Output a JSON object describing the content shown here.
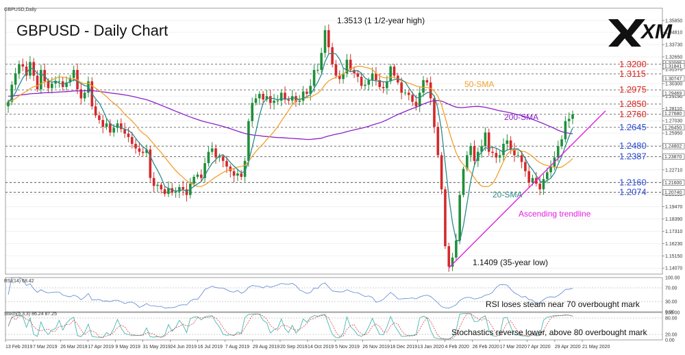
{
  "chart_data": {
    "type": "line",
    "symbol_header": "GBPUSD,Daily",
    "title": "GBPUSD - Daily Chart",
    "brand": "XM",
    "colors": {
      "bull": "#1f8f3a",
      "bear": "#d3292a",
      "sma20": "#2b8a8a",
      "sma50": "#f3a02b",
      "sma200": "#8a22c8",
      "trendline": "#e21fe0",
      "level_red": "#e0241d",
      "level_blue": "#2c4bd6",
      "rsi": "#6b8fd6",
      "stoch_main": "#45b6b0",
      "stoch_signal": "#e04040",
      "grid": "#dddddd"
    },
    "price_axis": {
      "ylim": [
        1.1354,
        1.3693
      ],
      "ticks": [
        "1.35850",
        "1.34810",
        "1.33730",
        "1.32650",
        "1.31570",
        "1.30300",
        "1.29190",
        "1.28110",
        "1.27030",
        "1.25950",
        "1.24870",
        "1.23790",
        "1.22710",
        "1.21630",
        "1.20550",
        "1.19470",
        "1.18390",
        "1.17310",
        "1.16230",
        "1.15150",
        "1.14070",
        "1.12990"
      ],
      "marked_ticks": [
        "1.32095",
        "1.31841",
        "1.30747",
        "1.29469",
        "1.27680",
        "1.26450",
        "1.24802",
        "1.23870",
        "1.21600",
        "1.20740"
      ]
    },
    "x_axis": {
      "ticks": [
        "13 Feb 2019",
        "7 Mar 2019",
        "26 Mar 2019",
        "17 Apr 2019",
        "9 May 2019",
        "31 May 2019",
        "24 Jun 2019",
        "16 Jul 2019",
        "7 Aug 2019",
        "29 Aug 2019",
        "20 Sep 2019",
        "14 Oct 2019",
        "5 Nov 2019",
        "26 Nov 2019",
        "18 Dec 2019",
        "13 Jan 2020",
        "4 Feb 2020",
        "26 Feb 2020",
        "17 Mar 2020",
        "7 Apr 2020",
        "29 Apr 2020",
        "21 May 2020"
      ]
    },
    "levels": [
      {
        "label": "1.3200",
        "value": 1.32,
        "color": "red"
      },
      {
        "label": "1.3115",
        "value": 1.3115,
        "color": "red"
      },
      {
        "label": "1.2975",
        "value": 1.2975,
        "color": "red"
      },
      {
        "label": "1.2850",
        "value": 1.285,
        "color": "red"
      },
      {
        "label": "1.2760",
        "value": 1.276,
        "color": "red"
      },
      {
        "label": "1.2645",
        "value": 1.2645,
        "color": "blue"
      },
      {
        "label": "1.2480",
        "value": 1.248,
        "color": "blue"
      },
      {
        "label": "1.2387",
        "value": 1.2387,
        "color": "blue"
      },
      {
        "label": "1.2160",
        "value": 1.216,
        "color": "blue"
      },
      {
        "label": "1.2074",
        "value": 1.2074,
        "color": "blue"
      }
    ],
    "annotations": {
      "high": "1.3513 (1 1/2-year high)",
      "low": "1.1409 (35-year low)",
      "sma50": "50-SMA",
      "sma200": "200-SMA",
      "sma20": "20-SMA",
      "trendline": "Ascending trendline",
      "rsi_note": "RSI loses steam near 70 overbought mark",
      "stoch_note": "Stochastics reverse lower, above 80 overbought mark"
    },
    "series": [
      {
        "name": "GBPUSD Daily",
        "close": [
          1.287,
          1.302,
          1.312,
          1.32,
          1.318,
          1.31,
          1.322,
          1.31,
          1.298,
          1.315,
          1.305,
          1.299,
          1.303,
          1.305,
          1.305,
          1.3,
          1.304,
          1.308,
          1.315,
          1.298,
          1.29,
          1.295,
          1.305,
          1.283,
          1.275,
          1.271,
          1.265,
          1.268,
          1.26,
          1.264,
          1.268,
          1.263,
          1.259,
          1.256,
          1.25,
          1.246,
          1.243,
          1.242,
          1.245,
          1.22,
          1.213,
          1.214,
          1.21,
          1.206,
          1.211,
          1.207,
          1.208,
          1.212,
          1.21,
          1.205,
          1.215,
          1.221,
          1.223,
          1.22,
          1.233,
          1.243,
          1.246,
          1.238,
          1.239,
          1.235,
          1.23,
          1.226,
          1.222,
          1.224,
          1.221,
          1.235,
          1.27,
          1.286,
          1.29,
          1.294,
          1.289,
          1.292,
          1.286,
          1.288,
          1.288,
          1.295,
          1.289,
          1.288,
          1.292,
          1.287,
          1.288,
          1.296,
          1.294,
          1.301,
          1.315,
          1.315,
          1.33,
          1.35,
          1.335,
          1.32,
          1.31,
          1.307,
          1.312,
          1.324,
          1.315,
          1.312,
          1.309,
          1.301,
          1.302,
          1.306,
          1.312,
          1.306,
          1.3,
          1.299,
          1.305,
          1.318,
          1.31,
          1.304,
          1.295,
          1.295,
          1.293,
          1.287,
          1.283,
          1.295,
          1.306,
          1.304,
          1.29,
          1.265,
          1.24,
          1.21,
          1.16,
          1.142,
          1.15,
          1.165,
          1.205,
          1.228,
          1.24,
          1.248,
          1.235,
          1.243,
          1.248,
          1.26,
          1.243,
          1.242,
          1.238,
          1.24,
          1.25,
          1.253,
          1.245,
          1.24,
          1.24,
          1.234,
          1.226,
          1.216,
          1.22,
          1.215,
          1.21,
          1.219,
          1.225,
          1.23,
          1.238,
          1.248,
          1.254,
          1.27,
          1.272,
          1.276
        ]
      },
      {
        "name": "20-SMA"
      },
      {
        "name": "50-SMA"
      },
      {
        "name": "200-SMA"
      }
    ],
    "rsi": {
      "label": "RSI(14) 68.42",
      "ylim": [
        0,
        100
      ],
      "ticks": [
        "100.00",
        "70.00",
        "30.00",
        "0.00"
      ],
      "value": 68.42
    },
    "stoch": {
      "label": "Stoch(5,3,3) 86.24 87.25",
      "ylim": [
        0,
        100
      ],
      "ticks": [
        "100.00",
        "80.00",
        "20.00",
        "0.00"
      ],
      "main": 86.24,
      "signal": 87.25
    }
  }
}
